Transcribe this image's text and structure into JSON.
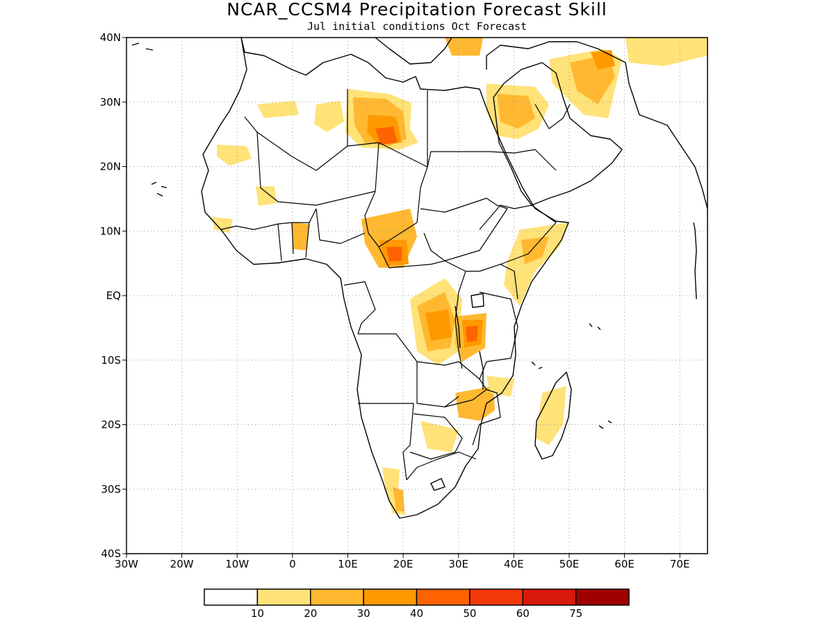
{
  "header": {
    "title": "NCAR_CCSM4 Precipitation Forecast Skill",
    "subtitle": "Jul initial conditions  Oct Forecast"
  },
  "map": {
    "lon_range": [
      -30,
      75
    ],
    "lat_range": [
      -40,
      40
    ],
    "lon_ticks": [
      {
        "value": -30,
        "label": "30W"
      },
      {
        "value": -20,
        "label": "20W"
      },
      {
        "value": -10,
        "label": "10W"
      },
      {
        "value": 0,
        "label": "0"
      },
      {
        "value": 10,
        "label": "10E"
      },
      {
        "value": 20,
        "label": "20E"
      },
      {
        "value": 30,
        "label": "30E"
      },
      {
        "value": 40,
        "label": "40E"
      },
      {
        "value": 50,
        "label": "50E"
      },
      {
        "value": 60,
        "label": "60E"
      },
      {
        "value": 70,
        "label": "70E"
      }
    ],
    "lat_ticks": [
      {
        "value": 40,
        "label": "40N"
      },
      {
        "value": 30,
        "label": "30N"
      },
      {
        "value": 20,
        "label": "20N"
      },
      {
        "value": 10,
        "label": "10N"
      },
      {
        "value": 0,
        "label": "EQ"
      },
      {
        "value": -10,
        "label": "10S"
      },
      {
        "value": -20,
        "label": "20S"
      },
      {
        "value": -30,
        "label": "30S"
      },
      {
        "value": -40,
        "label": "40S"
      }
    ],
    "grid": true
  },
  "legend": {
    "thresholds": [
      "10",
      "20",
      "30",
      "40",
      "50",
      "60",
      "75"
    ],
    "colors": [
      "#ffffff",
      "#ffe278",
      "#ffb830",
      "#ff9900",
      "#ff6200",
      "#f53808",
      "#d81808",
      "#a00000"
    ]
  }
}
